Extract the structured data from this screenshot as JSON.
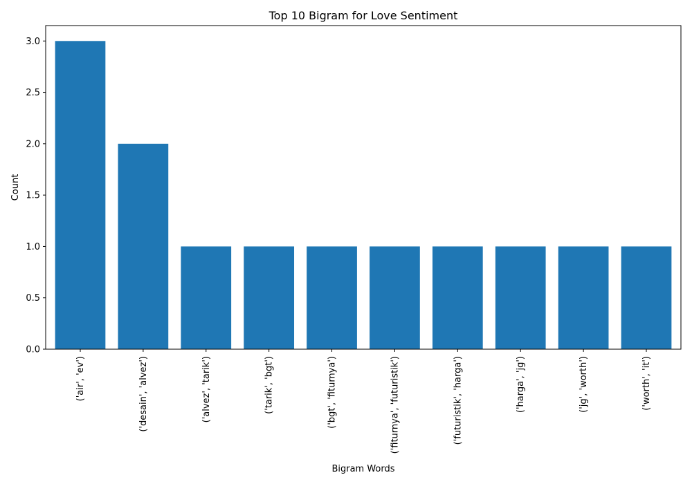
{
  "chart_data": {
    "type": "bar",
    "title": "Top 10 Bigram for Love Sentiment",
    "xlabel": "Bigram Words",
    "ylabel": "Count",
    "categories": [
      "('air', 'ev')",
      "('desain', 'alvez')",
      "('alvez', 'tarik')",
      "('tarik', 'bgt')",
      "('bgt', 'fiturnya')",
      "('fiturnya', 'futuristik')",
      "('futuristik', 'harga')",
      "('harga', 'jg')",
      "('jg', 'worth')",
      "('worth', 'it')"
    ],
    "values": [
      3,
      2,
      1,
      1,
      1,
      1,
      1,
      1,
      1,
      1
    ],
    "ylim": [
      0,
      3.15
    ],
    "yticks": [
      "0.0",
      "0.5",
      "1.0",
      "1.5",
      "2.0",
      "2.5",
      "3.0"
    ],
    "bar_color": "#1f77b4",
    "grid": false,
    "legend": "none"
  }
}
